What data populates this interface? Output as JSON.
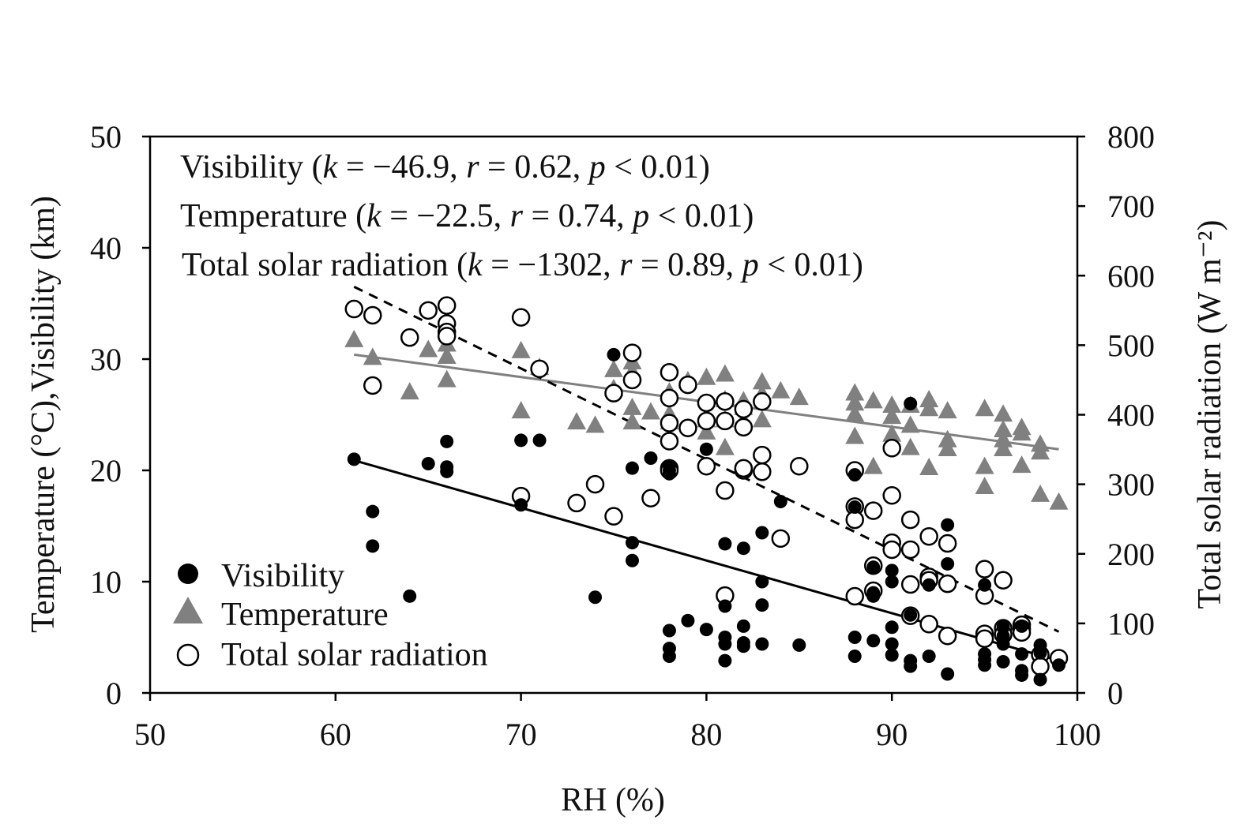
{
  "chart_data": {
    "type": "scatter",
    "xlabel": "RH (%)",
    "ylabel_left": "Temperature (°C),Visibility (km)",
    "ylabel_right": "Total solar radiation  (W m⁻²)",
    "xlim": [
      50,
      100
    ],
    "ylim_left": [
      0,
      50
    ],
    "ylim_right": [
      0,
      800
    ],
    "x_ticks": [
      "50",
      "60",
      "70",
      "80",
      "90",
      "100"
    ],
    "y_ticks_left": [
      "0",
      "10",
      "20",
      "30",
      "40",
      "50"
    ],
    "y_ticks_right": [
      "0",
      "100",
      "200",
      "300",
      "400",
      "500",
      "600",
      "700",
      "800"
    ],
    "legend_position": "bottom-left",
    "annotations": [
      {
        "name": "Visibility",
        "k": "−46.9",
        "r": "0.62",
        "p": "0.01"
      },
      {
        "name": "Temperature",
        "k": "−22.5",
        "r": "0.74",
        "p": "0.01"
      },
      {
        "name": "Total solar radiation",
        "k": "−1302",
        "r": "0.89",
        "p": "0.01"
      }
    ],
    "annotation_text": {
      "k": "k",
      "r": "r",
      "p": "p",
      "eq": " = ",
      "lt": " < ",
      "sep": ", ",
      "open": " (",
      "close": ")"
    },
    "series": [
      {
        "name": "Visibility",
        "axis": "left",
        "marker": "filled-circle",
        "color": "#000000",
        "points": [
          [
            61,
            21.0
          ],
          [
            62,
            16.3
          ],
          [
            62,
            13.2
          ],
          [
            64,
            8.7
          ],
          [
            65,
            20.6
          ],
          [
            66,
            22.6
          ],
          [
            66,
            20.3
          ],
          [
            66,
            19.9
          ],
          [
            70,
            22.7
          ],
          [
            70,
            16.9
          ],
          [
            71,
            22.7
          ],
          [
            74,
            8.6
          ],
          [
            75,
            30.4
          ],
          [
            76,
            20.2
          ],
          [
            76,
            13.5
          ],
          [
            76,
            11.9
          ],
          [
            77,
            21.1
          ],
          [
            78,
            20.4
          ],
          [
            78,
            20.0
          ],
          [
            78,
            19.7
          ],
          [
            78,
            5.6
          ],
          [
            78,
            4.0
          ],
          [
            78,
            3.3
          ],
          [
            79,
            6.5
          ],
          [
            80,
            21.9
          ],
          [
            80,
            5.7
          ],
          [
            81,
            13.4
          ],
          [
            81,
            7.8
          ],
          [
            81,
            5.0
          ],
          [
            81,
            4.4
          ],
          [
            81,
            2.9
          ],
          [
            82,
            13.0
          ],
          [
            82,
            6.0
          ],
          [
            82,
            4.5
          ],
          [
            82,
            4.2
          ],
          [
            83,
            14.4
          ],
          [
            83,
            10.0
          ],
          [
            83,
            7.9
          ],
          [
            83,
            4.4
          ],
          [
            84,
            17.2
          ],
          [
            85,
            4.3
          ],
          [
            88,
            19.6
          ],
          [
            88,
            16.7
          ],
          [
            88,
            5.0
          ],
          [
            88,
            3.3
          ],
          [
            89,
            11.3
          ],
          [
            89,
            9.0
          ],
          [
            89,
            8.7
          ],
          [
            89,
            4.7
          ],
          [
            90,
            11.0
          ],
          [
            90,
            10.0
          ],
          [
            90,
            5.9
          ],
          [
            90,
            4.4
          ],
          [
            90,
            3.4
          ],
          [
            91,
            26.0
          ],
          [
            91,
            7.0
          ],
          [
            91,
            2.9
          ],
          [
            91,
            2.4
          ],
          [
            92,
            9.7
          ],
          [
            92,
            3.3
          ],
          [
            93,
            15.1
          ],
          [
            93,
            11.6
          ],
          [
            93,
            1.7
          ],
          [
            95,
            9.7
          ],
          [
            95,
            3.5
          ],
          [
            95,
            3.0
          ],
          [
            95,
            2.5
          ],
          [
            96,
            5.9
          ],
          [
            96,
            5.1
          ],
          [
            96,
            4.4
          ],
          [
            96,
            2.8
          ],
          [
            97,
            6.0
          ],
          [
            97,
            3.5
          ],
          [
            97,
            2.0
          ],
          [
            97,
            1.6
          ],
          [
            98,
            4.3
          ],
          [
            98,
            3.6
          ],
          [
            98,
            1.2
          ],
          [
            99,
            2.5
          ]
        ]
      },
      {
        "name": "Temperature",
        "axis": "left",
        "marker": "filled-triangle",
        "color": "#808080",
        "points": [
          [
            61,
            31.7
          ],
          [
            62,
            30.1
          ],
          [
            64,
            27.0
          ],
          [
            65,
            30.8
          ],
          [
            66,
            31.3
          ],
          [
            66,
            30.2
          ],
          [
            66,
            28.1
          ],
          [
            70,
            30.7
          ],
          [
            70,
            25.3
          ],
          [
            71,
            29.2
          ],
          [
            73,
            24.3
          ],
          [
            74,
            24.0
          ],
          [
            75,
            29.0
          ],
          [
            75,
            27.3
          ],
          [
            76,
            29.7
          ],
          [
            76,
            28.8
          ],
          [
            76,
            25.6
          ],
          [
            76,
            24.3
          ],
          [
            77,
            25.2
          ],
          [
            78,
            27.0
          ],
          [
            78,
            25.0
          ],
          [
            78,
            24.3
          ],
          [
            79,
            28.0
          ],
          [
            80,
            28.3
          ],
          [
            80,
            24.5
          ],
          [
            80,
            23.4
          ],
          [
            81,
            28.6
          ],
          [
            81,
            26.3
          ],
          [
            81,
            24.5
          ],
          [
            81,
            22.0
          ],
          [
            82,
            26.2
          ],
          [
            82,
            25.6
          ],
          [
            82,
            24.4
          ],
          [
            83,
            27.9
          ],
          [
            83,
            26.8
          ],
          [
            83,
            24.5
          ],
          [
            84,
            27.1
          ],
          [
            85,
            26.5
          ],
          [
            88,
            26.9
          ],
          [
            88,
            26.0
          ],
          [
            88,
            25.0
          ],
          [
            88,
            23.0
          ],
          [
            89,
            26.2
          ],
          [
            89,
            20.3
          ],
          [
            90,
            25.8
          ],
          [
            90,
            24.8
          ],
          [
            90,
            23.2
          ],
          [
            91,
            25.8
          ],
          [
            91,
            24.0
          ],
          [
            91,
            22.0
          ],
          [
            92,
            26.3
          ],
          [
            92,
            25.5
          ],
          [
            92,
            20.2
          ],
          [
            93,
            25.3
          ],
          [
            93,
            22.7
          ],
          [
            93,
            21.9
          ],
          [
            95,
            25.5
          ],
          [
            95,
            20.3
          ],
          [
            95,
            18.5
          ],
          [
            96,
            25.0
          ],
          [
            96,
            23.6
          ],
          [
            96,
            22.7
          ],
          [
            96,
            21.9
          ],
          [
            97,
            23.8
          ],
          [
            97,
            23.3
          ],
          [
            97,
            20.4
          ],
          [
            98,
            22.3
          ],
          [
            98,
            21.6
          ],
          [
            98,
            17.8
          ],
          [
            99,
            17.1
          ]
        ]
      },
      {
        "name": "Total solar radiation",
        "axis": "right",
        "marker": "open-circle",
        "color": "#000000",
        "points": [
          [
            61,
            552
          ],
          [
            62,
            543
          ],
          [
            62,
            442
          ],
          [
            64,
            511
          ],
          [
            65,
            550
          ],
          [
            66,
            557
          ],
          [
            66,
            531
          ],
          [
            66,
            519
          ],
          [
            66,
            513
          ],
          [
            70,
            540
          ],
          [
            70,
            283
          ],
          [
            71,
            466
          ],
          [
            73,
            273
          ],
          [
            74,
            300
          ],
          [
            75,
            254
          ],
          [
            75,
            431
          ],
          [
            76,
            489
          ],
          [
            76,
            450
          ],
          [
            77,
            280
          ],
          [
            78,
            461
          ],
          [
            78,
            424
          ],
          [
            78,
            388
          ],
          [
            78,
            362
          ],
          [
            78,
            323
          ],
          [
            78,
            320
          ],
          [
            79,
            443
          ],
          [
            79,
            381
          ],
          [
            80,
            417
          ],
          [
            80,
            391
          ],
          [
            80,
            326
          ],
          [
            81,
            419
          ],
          [
            81,
            391
          ],
          [
            81,
            291
          ],
          [
            81,
            140
          ],
          [
            82,
            408
          ],
          [
            82,
            382
          ],
          [
            82,
            320
          ],
          [
            82,
            323
          ],
          [
            83,
            419
          ],
          [
            83,
            342
          ],
          [
            83,
            318
          ],
          [
            84,
            222
          ],
          [
            85,
            326
          ],
          [
            88,
            320
          ],
          [
            88,
            268
          ],
          [
            88,
            249
          ],
          [
            88,
            139
          ],
          [
            89,
            262
          ],
          [
            89,
            183
          ],
          [
            89,
            147
          ],
          [
            90,
            352
          ],
          [
            90,
            284
          ],
          [
            90,
            216
          ],
          [
            90,
            206
          ],
          [
            91,
            249
          ],
          [
            91,
            206
          ],
          [
            91,
            156
          ],
          [
            91,
            111
          ],
          [
            92,
            225
          ],
          [
            92,
            167
          ],
          [
            92,
            162
          ],
          [
            92,
            99
          ],
          [
            93,
            215
          ],
          [
            93,
            157
          ],
          [
            93,
            82
          ],
          [
            95,
            178
          ],
          [
            95,
            140
          ],
          [
            95,
            85
          ],
          [
            95,
            78
          ],
          [
            96,
            162
          ],
          [
            96,
            93
          ],
          [
            96,
            84
          ],
          [
            97,
            98
          ],
          [
            97,
            92
          ],
          [
            97,
            87
          ],
          [
            98,
            55
          ],
          [
            98,
            38
          ],
          [
            99,
            50
          ]
        ]
      }
    ],
    "trendlines": [
      {
        "name": "Visibility",
        "axis": "left",
        "style": "solid",
        "color": "#000000",
        "x": [
          61,
          99
        ],
        "y": [
          20.9,
          2.9
        ]
      },
      {
        "name": "Temperature",
        "axis": "left",
        "style": "solid",
        "color": "#808080",
        "x": [
          61,
          99
        ],
        "y": [
          30.4,
          21.9
        ]
      },
      {
        "name": "Total solar radiation",
        "axis": "right",
        "style": "dashed",
        "color": "#000000",
        "x": [
          61,
          99
        ],
        "y": [
          584,
          88
        ]
      }
    ]
  }
}
